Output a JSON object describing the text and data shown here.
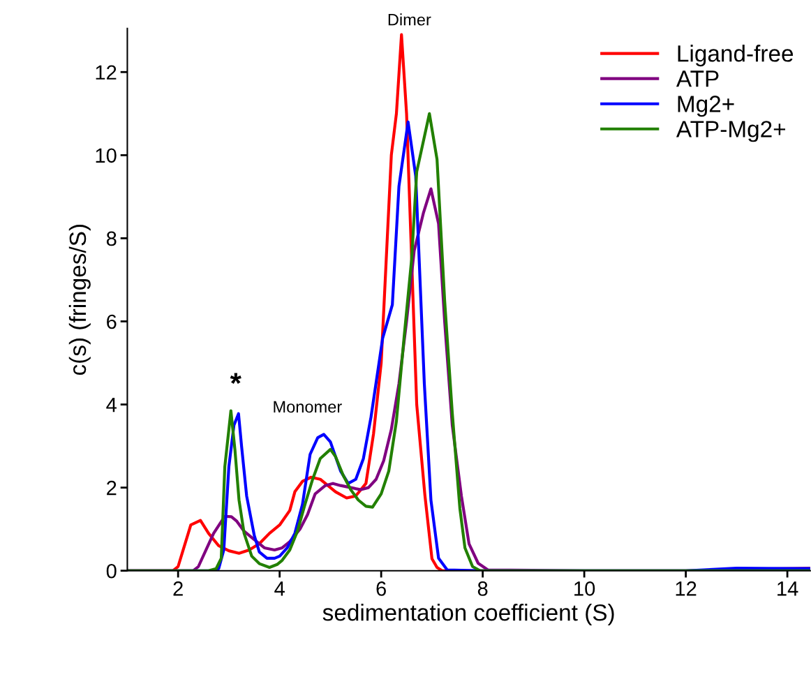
{
  "chart_data": {
    "type": "line",
    "xlabel": "sedimentation coefficient (S)",
    "ylabel": "c(s) (fringes/S)",
    "xlim": [
      1,
      14.45
    ],
    "ylim": [
      0,
      13.05
    ],
    "xticks": [
      2,
      4,
      6,
      8,
      10,
      12,
      14
    ],
    "yticks": [
      0,
      2,
      4,
      6,
      8,
      10,
      12
    ],
    "grid": false,
    "legend": "top right",
    "marker": "none",
    "line_style": "solid",
    "annotations": [
      {
        "text": "Dimer",
        "x": 6.4,
        "y": 12.9
      },
      {
        "text": "Monomer",
        "x": 4.87,
        "y": 3.28
      },
      {
        "text": "*",
        "x": 3.04,
        "y": 3.85
      }
    ],
    "series": [
      {
        "name": "Ligand-free",
        "color": "#ff0000",
        "x": [
          1,
          1.9,
          2.0,
          2.1,
          2.25,
          2.44,
          2.6,
          2.8,
          3.0,
          3.2,
          3.4,
          3.6,
          3.8,
          4.0,
          4.2,
          4.3,
          4.45,
          4.62,
          4.8,
          4.95,
          5.1,
          5.32,
          5.5,
          5.7,
          5.85,
          6.0,
          6.1,
          6.2,
          6.3,
          6.4,
          6.5,
          6.6,
          6.7,
          6.86,
          7.0,
          7.1,
          7.2,
          8
        ],
        "values": [
          0,
          0,
          0.1,
          0.5,
          1.1,
          1.21,
          0.9,
          0.6,
          0.48,
          0.42,
          0.5,
          0.65,
          0.9,
          1.1,
          1.45,
          1.9,
          2.15,
          2.25,
          2.2,
          2.05,
          1.9,
          1.75,
          1.8,
          2.1,
          3.3,
          5.0,
          7.5,
          10.0,
          11.0,
          12.9,
          11.0,
          7.5,
          4.0,
          1.83,
          0.29,
          0.08,
          0,
          0
        ]
      },
      {
        "name": "ATP",
        "color": "#800080",
        "x": [
          1,
          2.3,
          2.4,
          2.55,
          2.7,
          2.92,
          3.05,
          3.15,
          3.3,
          3.5,
          3.7,
          3.9,
          4.05,
          4.2,
          4.4,
          4.55,
          4.7,
          4.9,
          5.05,
          5.2,
          5.4,
          5.6,
          5.75,
          5.9,
          6.05,
          6.2,
          6.35,
          6.5,
          6.65,
          6.83,
          6.98,
          7.13,
          7.25,
          7.4,
          7.58,
          7.73,
          7.91,
          8.1,
          10,
          12,
          13,
          14.45
        ],
        "values": [
          0,
          0,
          0.1,
          0.5,
          0.9,
          1.31,
          1.3,
          1.2,
          0.95,
          0.75,
          0.55,
          0.5,
          0.55,
          0.7,
          1.0,
          1.35,
          1.85,
          2.05,
          2.1,
          2.05,
          2.0,
          1.95,
          2.0,
          2.2,
          2.65,
          3.4,
          4.5,
          6.0,
          7.7,
          8.6,
          9.19,
          8.35,
          6.0,
          3.5,
          1.8,
          0.65,
          0.18,
          0.02,
          0,
          0,
          0.03,
          0.06
        ]
      },
      {
        "name": "Mg2+",
        "color": "#0000ff",
        "x": [
          1,
          2.7,
          2.8,
          2.9,
          3.0,
          3.1,
          3.19,
          3.25,
          3.35,
          3.5,
          3.6,
          3.75,
          3.9,
          4.0,
          4.15,
          4.3,
          4.45,
          4.6,
          4.75,
          4.87,
          5.0,
          5.2,
          5.35,
          5.5,
          5.65,
          5.8,
          6.03,
          6.22,
          6.35,
          6.53,
          6.68,
          6.85,
          6.98,
          7.13,
          7.3,
          8,
          10,
          12,
          13,
          14.45
        ],
        "values": [
          0,
          0,
          0.05,
          0.5,
          2.5,
          3.5,
          3.78,
          3.0,
          1.8,
          0.85,
          0.45,
          0.3,
          0.3,
          0.35,
          0.55,
          0.9,
          1.6,
          2.8,
          3.2,
          3.28,
          3.1,
          2.4,
          2.1,
          2.2,
          2.7,
          3.7,
          5.6,
          6.4,
          9.25,
          10.8,
          9.5,
          4.5,
          1.7,
          0.3,
          0.02,
          0,
          0,
          0,
          0.06,
          0.05
        ]
      },
      {
        "name": "ATP-Mg2+",
        "color": "#228000",
        "x": [
          1,
          2.6,
          2.75,
          2.85,
          2.92,
          3.04,
          3.12,
          3.2,
          3.3,
          3.45,
          3.6,
          3.8,
          3.95,
          4.05,
          4.2,
          4.35,
          4.5,
          4.65,
          4.8,
          5.0,
          5.1,
          5.25,
          5.4,
          5.55,
          5.7,
          5.83,
          6.0,
          6.15,
          6.3,
          6.45,
          6.6,
          6.7,
          6.95,
          7.1,
          7.25,
          7.4,
          7.55,
          7.65,
          7.8,
          7.95,
          10,
          12,
          14.45
        ],
        "values": [
          0,
          0,
          0.05,
          0.3,
          2.5,
          3.85,
          2.9,
          1.7,
          0.9,
          0.35,
          0.17,
          0.08,
          0.15,
          0.25,
          0.5,
          0.95,
          1.6,
          2.2,
          2.7,
          2.92,
          2.75,
          2.3,
          1.95,
          1.7,
          1.55,
          1.53,
          1.85,
          2.4,
          3.6,
          5.6,
          7.5,
          9.6,
          11.0,
          9.9,
          6.5,
          3.8,
          1.5,
          0.55,
          0.1,
          0,
          0,
          0,
          0
        ]
      }
    ]
  }
}
